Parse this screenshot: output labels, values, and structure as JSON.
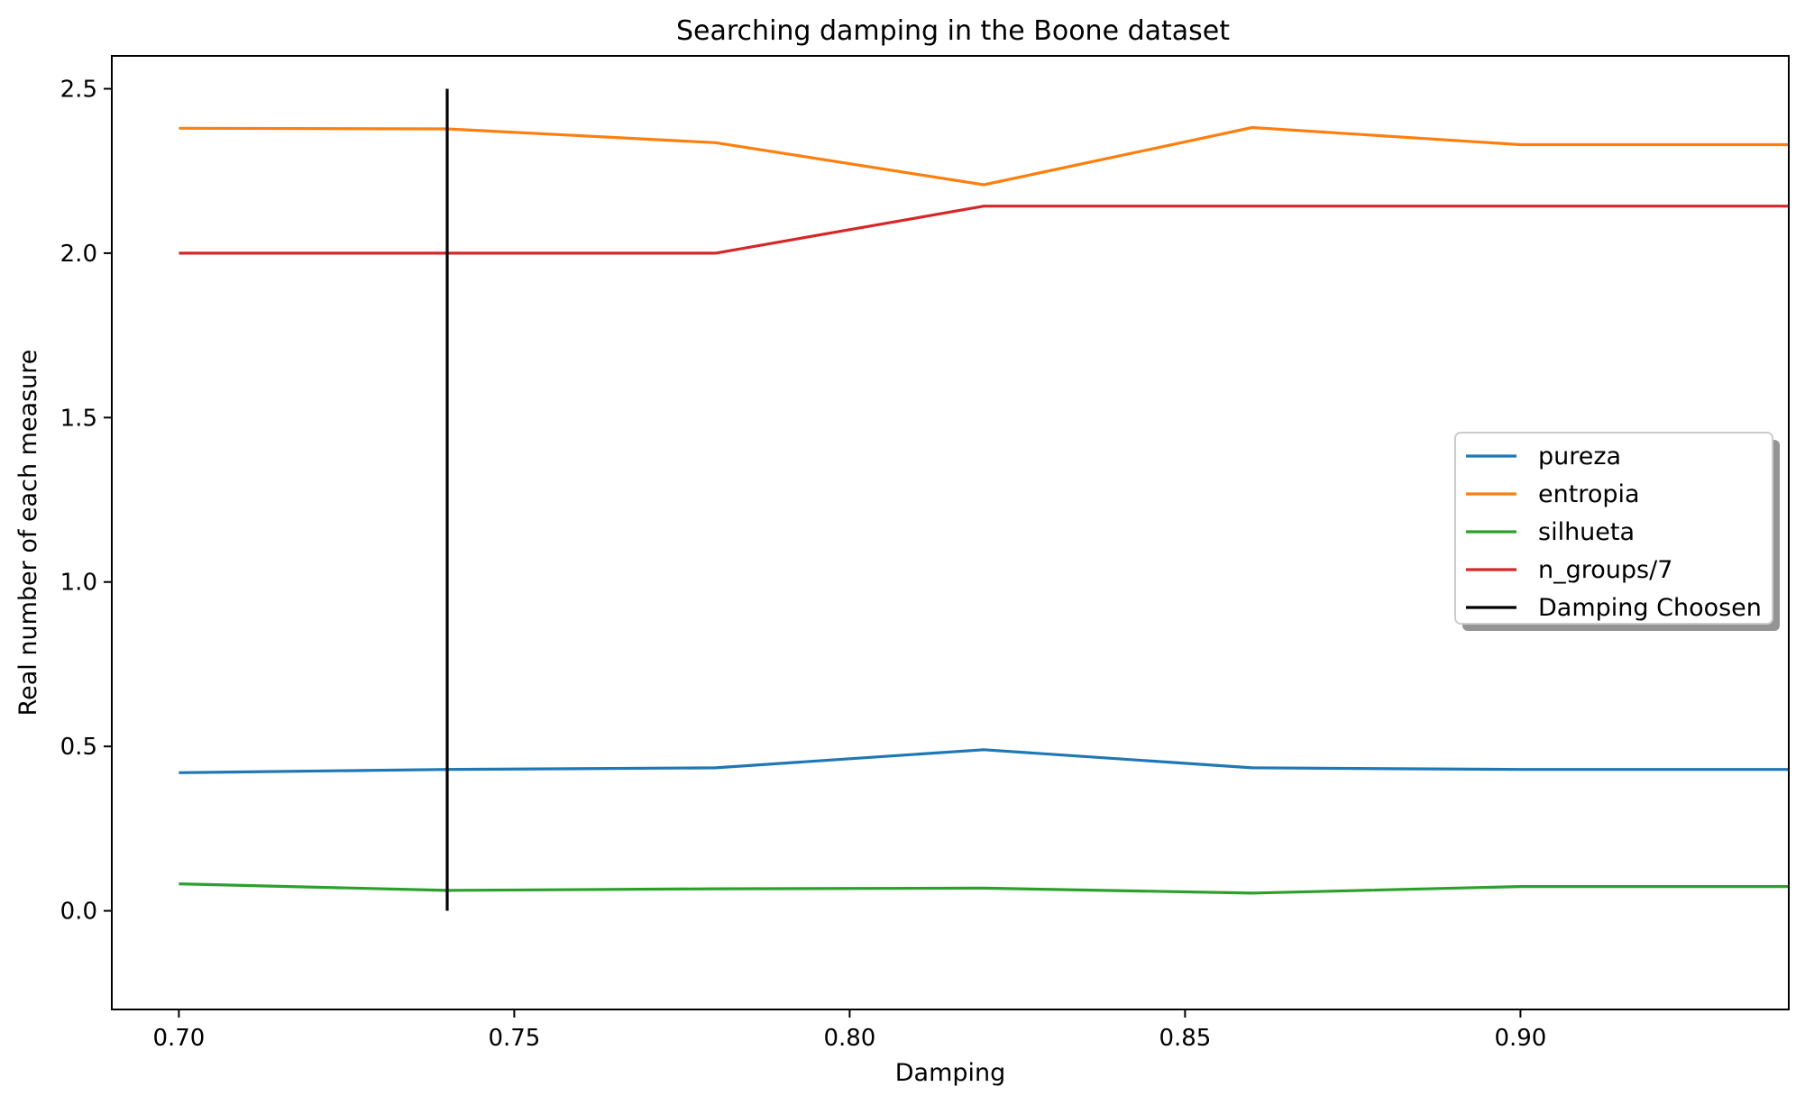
{
  "chart_data": {
    "type": "line",
    "title": "Searching damping in the Boone dataset",
    "xlabel": "Damping",
    "ylabel": "Real number of each measure",
    "xlim": [
      0.69,
      0.94
    ],
    "ylim": [
      -0.3,
      2.6
    ],
    "x": [
      0.7,
      0.74,
      0.78,
      0.82,
      0.86,
      0.9,
      0.94
    ],
    "xticks": [
      "0.70",
      "0.75",
      "0.80",
      "0.85",
      "0.90"
    ],
    "xtick_values": [
      0.7,
      0.75,
      0.8,
      0.85,
      0.9
    ],
    "yticks": [
      "0.0",
      "0.5",
      "1.0",
      "1.5",
      "2.0",
      "2.5"
    ],
    "ytick_values": [
      0.0,
      0.5,
      1.0,
      1.5,
      2.0,
      2.5
    ],
    "series": [
      {
        "name": "pureza",
        "color": "#1f77b4",
        "values": [
          0.42,
          0.43,
          0.435,
          0.49,
          0.435,
          0.43,
          0.43
        ]
      },
      {
        "name": "entropia",
        "color": "#ff7f0e",
        "values": [
          2.38,
          2.378,
          2.336,
          2.208,
          2.382,
          2.33,
          2.33
        ]
      },
      {
        "name": "silhueta",
        "color": "#2ca02c",
        "values": [
          0.082,
          0.062,
          0.067,
          0.069,
          0.054,
          0.074,
          0.074
        ]
      },
      {
        "name": "n_groups/7",
        "color": "#d62728",
        "values": [
          2.0,
          2.0,
          2.0,
          2.143,
          2.143,
          2.143,
          2.143
        ]
      }
    ],
    "vline": {
      "name": "Damping Choosen",
      "color": "#000000",
      "x": 0.74,
      "y_from": 0.0,
      "y_to": 2.5
    },
    "legend_position": "center-right",
    "grid": false
  }
}
